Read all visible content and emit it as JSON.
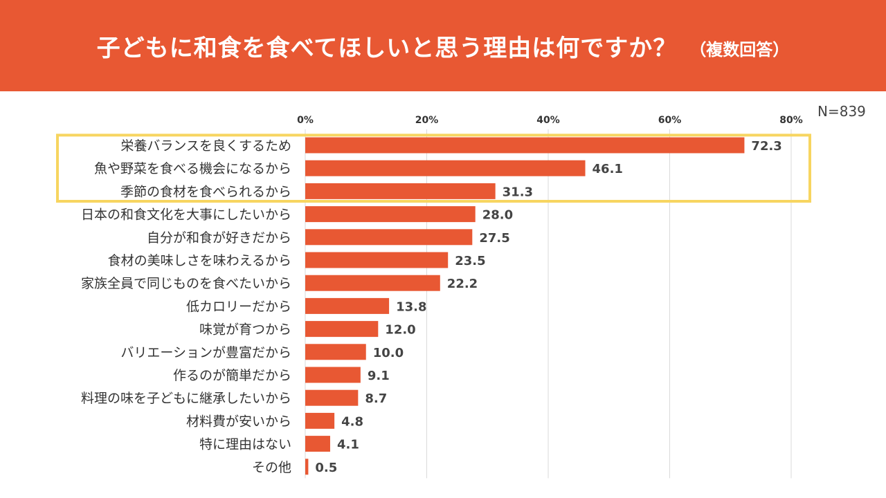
{
  "header": {
    "title": "子どもに和食を食べてほしいと思う理由は何ですか？",
    "subtitle": "（複数回答）",
    "background_color": "#e85833"
  },
  "sample_size": "N=839",
  "highlight": {
    "color": "#f7d560",
    "categories": [
      "栄養バランスを良くするため",
      "魚や野菜を食べる機会になるから",
      "季節の食材を食べられるから"
    ]
  },
  "chart_data": {
    "type": "bar",
    "orientation": "horizontal",
    "title": "子どもに和食を食べてほしいと思う理由は何ですか？（複数回答）",
    "xlabel": "",
    "ylabel": "",
    "xlim": [
      0,
      80
    ],
    "xticks": [
      0,
      20,
      40,
      60,
      80
    ],
    "xtick_labels": [
      "0%",
      "20%",
      "40%",
      "60%",
      "80%"
    ],
    "bar_color": "#e85833",
    "grid": true,
    "categories": [
      "栄養バランスを良くするため",
      "魚や野菜を食べる機会になるから",
      "季節の食材を食べられるから",
      "日本の和食文化を大事にしたいから",
      "自分が和食が好きだから",
      "食材の美味しさを味わえるから",
      "家族全員で同じものを食べたいから",
      "低カロリーだから",
      "味覚が育つから",
      "バリエーションが豊富だから",
      "作るのが簡単だから",
      "料理の味を子どもに継承したいから",
      "材料費が安いから",
      "特に理由はない",
      "その他"
    ],
    "values": [
      72.3,
      46.1,
      31.3,
      28.0,
      27.5,
      23.5,
      22.2,
      13.8,
      12.0,
      10.0,
      9.1,
      8.7,
      4.8,
      4.1,
      0.5
    ],
    "value_labels": [
      "72.3",
      "46.1",
      "31.3",
      "28.0",
      "27.5",
      "23.5",
      "22.2",
      "13.8",
      "12.0",
      "10.0",
      "9.1",
      "8.7",
      "4.8",
      "4.1",
      "0.5"
    ]
  }
}
